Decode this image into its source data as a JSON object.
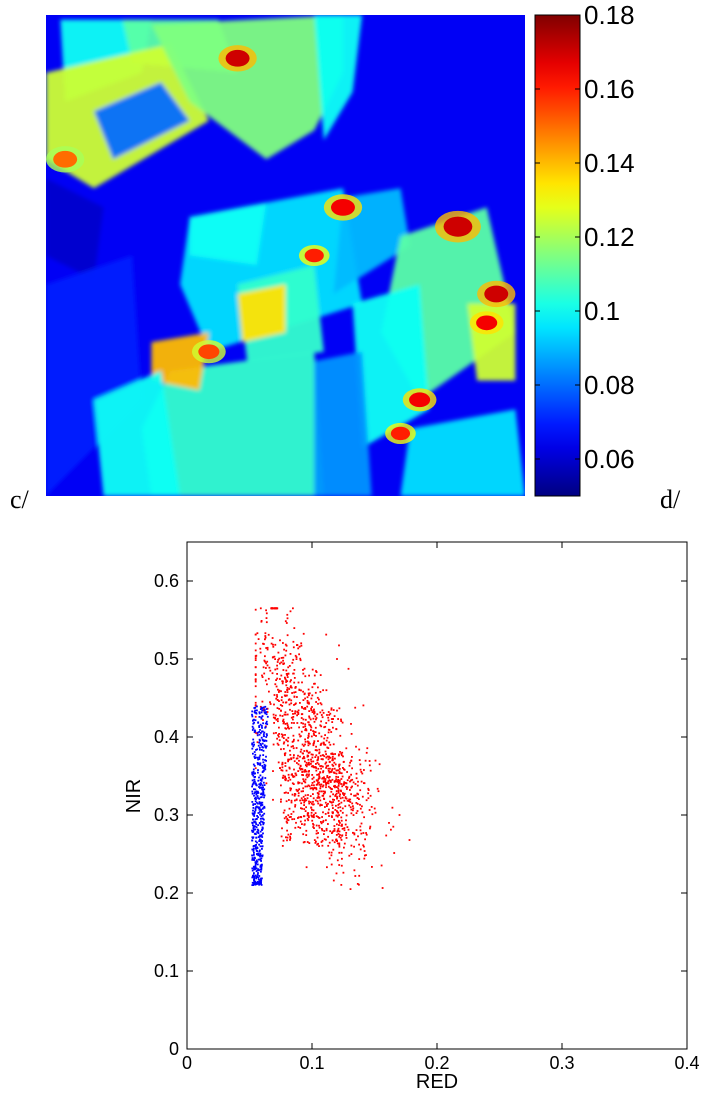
{
  "panel_labels": {
    "left": "c/",
    "right": "d/"
  },
  "chart_data": [
    {
      "type": "heatmap",
      "title": "",
      "colormap": "jet",
      "color_range": [
        0.05,
        0.18
      ],
      "colorbar_ticks": [
        "0.06",
        "0.08",
        "0.1",
        "0.12",
        "0.14",
        "0.16",
        "0.18"
      ],
      "colorbar_tick_values": [
        0.06,
        0.08,
        0.1,
        0.12,
        0.14,
        0.16,
        0.18
      ],
      "background_value": 0.065,
      "regions": [
        {
          "polygon": [
            [
              0.03,
              0.01
            ],
            [
              0.22,
              0.01
            ],
            [
              0.2,
              0.12
            ],
            [
              0.04,
              0.18
            ]
          ],
          "value": 0.1
        },
        {
          "polygon": [
            [
              0.16,
              0.01
            ],
            [
              0.36,
              0.01
            ],
            [
              0.4,
              0.12
            ],
            [
              0.18,
              0.1
            ]
          ],
          "value": 0.11
        },
        {
          "polygon": [
            [
              0.0,
              0.12
            ],
            [
              0.26,
              0.06
            ],
            [
              0.34,
              0.22
            ],
            [
              0.1,
              0.36
            ],
            [
              0.0,
              0.3
            ]
          ],
          "value": 0.125
        },
        {
          "polygon": [
            [
              0.1,
              0.2
            ],
            [
              0.24,
              0.14
            ],
            [
              0.3,
              0.22
            ],
            [
              0.14,
              0.3
            ]
          ],
          "value": 0.08
        },
        {
          "polygon": [
            [
              0.22,
              0.02
            ],
            [
              0.62,
              0.0
            ],
            [
              0.62,
              0.12
            ],
            [
              0.56,
              0.24
            ],
            [
              0.46,
              0.3
            ],
            [
              0.3,
              0.18
            ]
          ],
          "value": 0.115
        },
        {
          "polygon": [
            [
              0.56,
              0.0
            ],
            [
              0.66,
              0.0
            ],
            [
              0.64,
              0.16
            ],
            [
              0.58,
              0.26
            ]
          ],
          "value": 0.1
        },
        {
          "polygon": [
            [
              0.0,
              0.34
            ],
            [
              0.12,
              0.4
            ],
            [
              0.1,
              0.55
            ],
            [
              0.0,
              0.5
            ]
          ],
          "value": 0.06
        },
        {
          "polygon": [
            [
              0.3,
              0.42
            ],
            [
              0.62,
              0.36
            ],
            [
              0.66,
              0.6
            ],
            [
              0.34,
              0.7
            ],
            [
              0.28,
              0.56
            ]
          ],
          "value": 0.095
        },
        {
          "polygon": [
            [
              0.3,
              0.42
            ],
            [
              0.46,
              0.39
            ],
            [
              0.44,
              0.52
            ],
            [
              0.3,
              0.5
            ]
          ],
          "value": 0.1
        },
        {
          "polygon": [
            [
              0.4,
              0.56
            ],
            [
              0.56,
              0.52
            ],
            [
              0.58,
              0.7
            ],
            [
              0.42,
              0.72
            ]
          ],
          "value": 0.105
        },
        {
          "polygon": [
            [
              0.4,
              0.58
            ],
            [
              0.5,
              0.56
            ],
            [
              0.5,
              0.66
            ],
            [
              0.41,
              0.68
            ]
          ],
          "value": 0.135
        },
        {
          "polygon": [
            [
              0.62,
              0.38
            ],
            [
              0.74,
              0.36
            ],
            [
              0.76,
              0.48
            ],
            [
              0.6,
              0.58
            ]
          ],
          "value": 0.09
        },
        {
          "polygon": [
            [
              0.74,
              0.46
            ],
            [
              0.92,
              0.4
            ],
            [
              0.98,
              0.66
            ],
            [
              0.78,
              0.8
            ],
            [
              0.7,
              0.66
            ]
          ],
          "value": 0.11
        },
        {
          "polygon": [
            [
              0.64,
              0.6
            ],
            [
              0.78,
              0.56
            ],
            [
              0.8,
              0.82
            ],
            [
              0.66,
              0.9
            ]
          ],
          "value": 0.1
        },
        {
          "polygon": [
            [
              0.26,
              0.74
            ],
            [
              0.56,
              0.7
            ],
            [
              0.58,
              1.0
            ],
            [
              0.22,
              1.0
            ],
            [
              0.2,
              0.86
            ]
          ],
          "value": 0.105
        },
        {
          "polygon": [
            [
              0.22,
              0.68
            ],
            [
              0.34,
              0.66
            ],
            [
              0.32,
              0.78
            ],
            [
              0.22,
              0.76
            ]
          ],
          "value": 0.14
        },
        {
          "polygon": [
            [
              0.56,
              0.72
            ],
            [
              0.66,
              0.7
            ],
            [
              0.68,
              1.0
            ],
            [
              0.56,
              1.0
            ]
          ],
          "value": 0.085
        },
        {
          "polygon": [
            [
              0.76,
              0.86
            ],
            [
              0.98,
              0.82
            ],
            [
              1.0,
              1.0
            ],
            [
              0.74,
              1.0
            ]
          ],
          "value": 0.095
        },
        {
          "polygon": [
            [
              0.88,
              0.6
            ],
            [
              0.98,
              0.6
            ],
            [
              0.98,
              0.76
            ],
            [
              0.9,
              0.76
            ]
          ],
          "value": 0.125
        },
        {
          "polygon": [
            [
              0.0,
              0.56
            ],
            [
              0.18,
              0.5
            ],
            [
              0.2,
              0.8
            ],
            [
              0.0,
              1.0
            ]
          ],
          "value": 0.07
        },
        {
          "polygon": [
            [
              0.1,
              0.8
            ],
            [
              0.24,
              0.74
            ],
            [
              0.28,
              1.0
            ],
            [
              0.12,
              1.0
            ]
          ],
          "value": 0.1
        }
      ],
      "hotspots": [
        {
          "x": 0.4,
          "y": 0.09,
          "r": 0.025,
          "value": 0.17
        },
        {
          "x": 0.62,
          "y": 0.4,
          "r": 0.025,
          "value": 0.165
        },
        {
          "x": 0.86,
          "y": 0.44,
          "r": 0.03,
          "value": 0.17
        },
        {
          "x": 0.94,
          "y": 0.58,
          "r": 0.025,
          "value": 0.17
        },
        {
          "x": 0.92,
          "y": 0.64,
          "r": 0.022,
          "value": 0.165
        },
        {
          "x": 0.56,
          "y": 0.5,
          "r": 0.02,
          "value": 0.16
        },
        {
          "x": 0.78,
          "y": 0.8,
          "r": 0.022,
          "value": 0.165
        },
        {
          "x": 0.74,
          "y": 0.87,
          "r": 0.02,
          "value": 0.16
        },
        {
          "x": 0.34,
          "y": 0.7,
          "r": 0.022,
          "value": 0.155
        },
        {
          "x": 0.04,
          "y": 0.3,
          "r": 0.025,
          "value": 0.15
        }
      ]
    },
    {
      "type": "scatter",
      "title": "",
      "xlabel": "RED",
      "ylabel": "NIR",
      "xlim": [
        0,
        0.4
      ],
      "ylim": [
        0,
        0.65
      ],
      "xticks": [
        0,
        0.1,
        0.2,
        0.3,
        0.4
      ],
      "xtick_labels": [
        "0",
        "0.1",
        "0.2",
        "0.3",
        "0.4"
      ],
      "yticks": [
        0,
        0.1,
        0.2,
        0.3,
        0.4,
        0.5,
        0.6
      ],
      "ytick_labels": [
        "0",
        "0.1",
        "0.2",
        "0.3",
        "0.4",
        "0.5",
        "0.6"
      ],
      "grid": false,
      "series": [
        {
          "color": "#0000ff",
          "x_range": [
            0.052,
            0.065
          ],
          "y_range": [
            0.21,
            0.44
          ],
          "point_count": 500
        },
        {
          "color": "#ff0000",
          "cluster_center": [
            0.09,
            0.33
          ],
          "x_range": [
            0.055,
            0.178
          ],
          "y_range": [
            0.205,
            0.565
          ],
          "point_count": 1300
        }
      ]
    }
  ]
}
